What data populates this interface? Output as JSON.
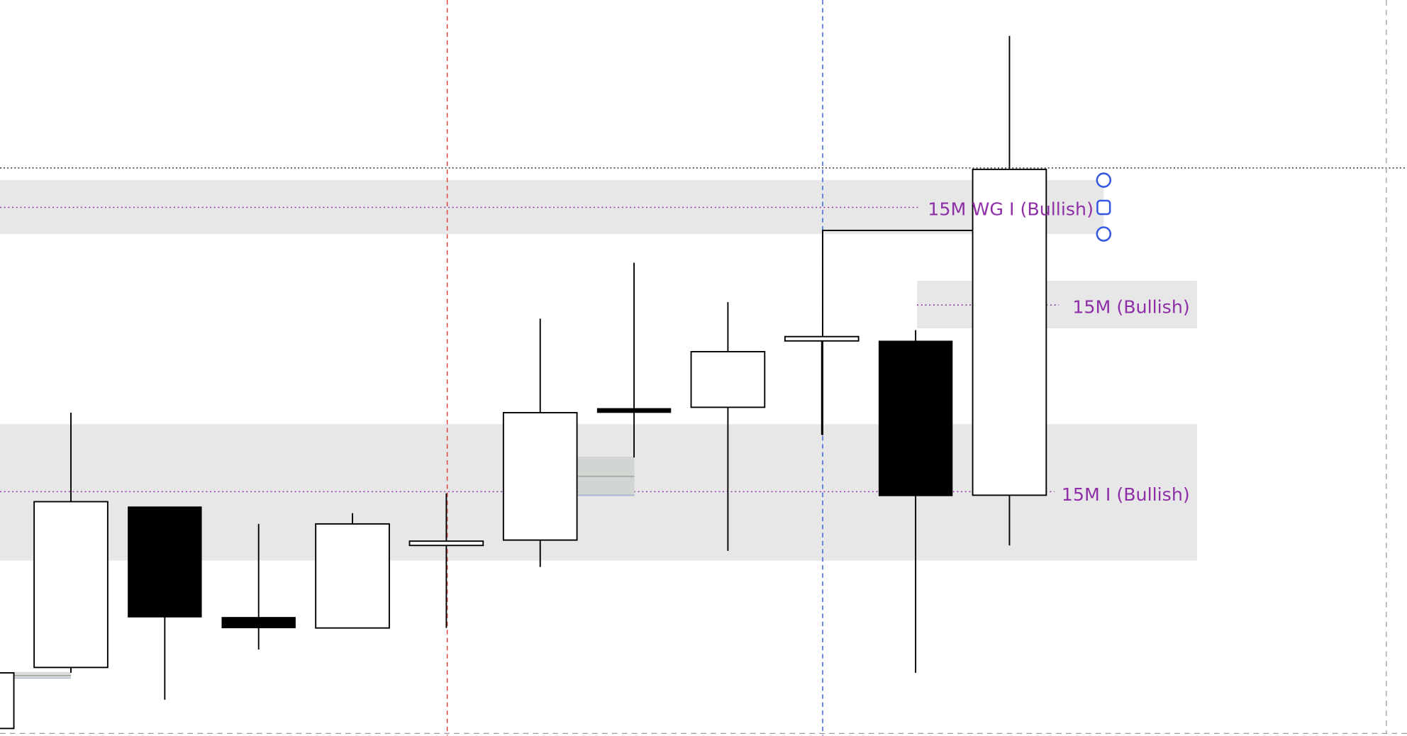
{
  "chart_data": {
    "type": "candlestick",
    "title": "",
    "grid": false,
    "colors": {
      "bullish_body": "#ffffff",
      "bearish_body": "#000000",
      "zone_fill": "#e7e7e7",
      "zone_line": "#8e2fa8",
      "zone_label": "#8e2fa8",
      "vline_red": "#e0463f",
      "vline_blue": "#3a63e0",
      "handle": "#3558e0",
      "border_dash": "#9a9aa2"
    },
    "candles": [
      {
        "open": 1,
        "high": 8.75,
        "low": 1,
        "close": 8.75
      },
      {
        "open": 9.5,
        "high": 45,
        "low": 8.75,
        "close": 32.6
      },
      {
        "open": 31.9,
        "high": 31.9,
        "low": 5,
        "close": 16.5
      },
      {
        "open": 16.5,
        "high": 29.5,
        "low": 12,
        "close": 15
      },
      {
        "open": 15,
        "high": 31,
        "low": 15,
        "close": 29.5
      },
      {
        "open": 26.5,
        "high": 33.75,
        "low": 15,
        "close": 27.1
      },
      {
        "open": 27.25,
        "high": 58.1,
        "low": 23.5,
        "close": 45
      },
      {
        "open": 45.6,
        "high": 65.9,
        "low": 38.75,
        "close": 45
      },
      {
        "open": 45.75,
        "high": 60.4,
        "low": 25.75,
        "close": 53.5
      },
      {
        "open": 55,
        "high": 55.6,
        "low": 41.9,
        "close": 55.6
      },
      {
        "open": 55,
        "high": 56.5,
        "low": 8.75,
        "close": 33.4
      },
      {
        "open": 33.5,
        "high": 97.5,
        "low": 26.5,
        "close": 78.9
      }
    ],
    "zones": [
      {
        "label": "15M WG I (Bullish)",
        "top": 77.4,
        "bottom": 69.9,
        "mid": 73.6,
        "start_index": 0,
        "selected": true
      },
      {
        "label": "15M (Bullish)",
        "top": 63.4,
        "bottom": 56.75,
        "mid": 60,
        "start_index": 10,
        "selected": false
      },
      {
        "label": "15M I (Bullish)",
        "top": 43.4,
        "bottom": 24.4,
        "mid": 34,
        "start_index": 0,
        "selected": false
      }
    ],
    "horizontal_line_dotted": 79.1,
    "step_line": {
      "level": 70.4,
      "from_index": 9,
      "to_index": 11
    },
    "vertical_markers": [
      {
        "index": 5,
        "color": "red"
      },
      {
        "index": 9,
        "color": "blue"
      }
    ]
  }
}
